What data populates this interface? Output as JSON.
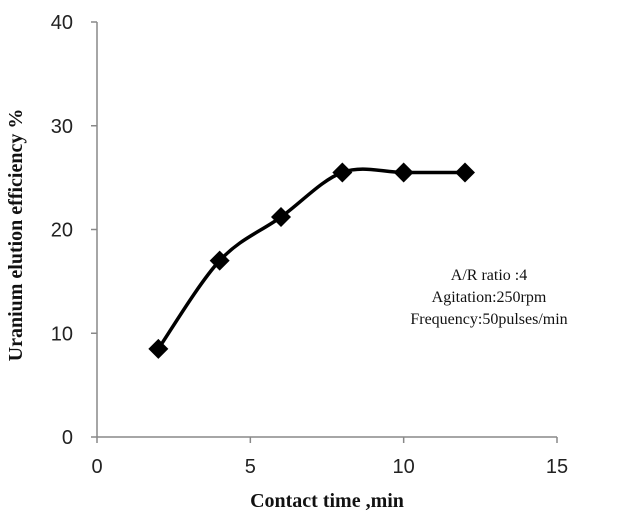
{
  "chart_data": {
    "type": "line",
    "x_label": "Contact time ,min",
    "y_label": "Uranium elution efficiency %",
    "x": [
      2,
      4,
      6,
      8,
      10,
      12
    ],
    "values": [
      8.5,
      17,
      21.2,
      25.5,
      25.5,
      25.5
    ],
    "color": "#000000",
    "smooth": true,
    "marker": "diamond",
    "xlim": [
      0,
      15
    ],
    "xticks": [
      0,
      5,
      10,
      15
    ],
    "ylim": [
      0,
      40
    ],
    "yticks": [
      0,
      10,
      20,
      30,
      40
    ],
    "annotations": [
      "A/R ratio :4",
      "Agitation:250rpm",
      "Frequency:50pulses/min"
    ]
  }
}
